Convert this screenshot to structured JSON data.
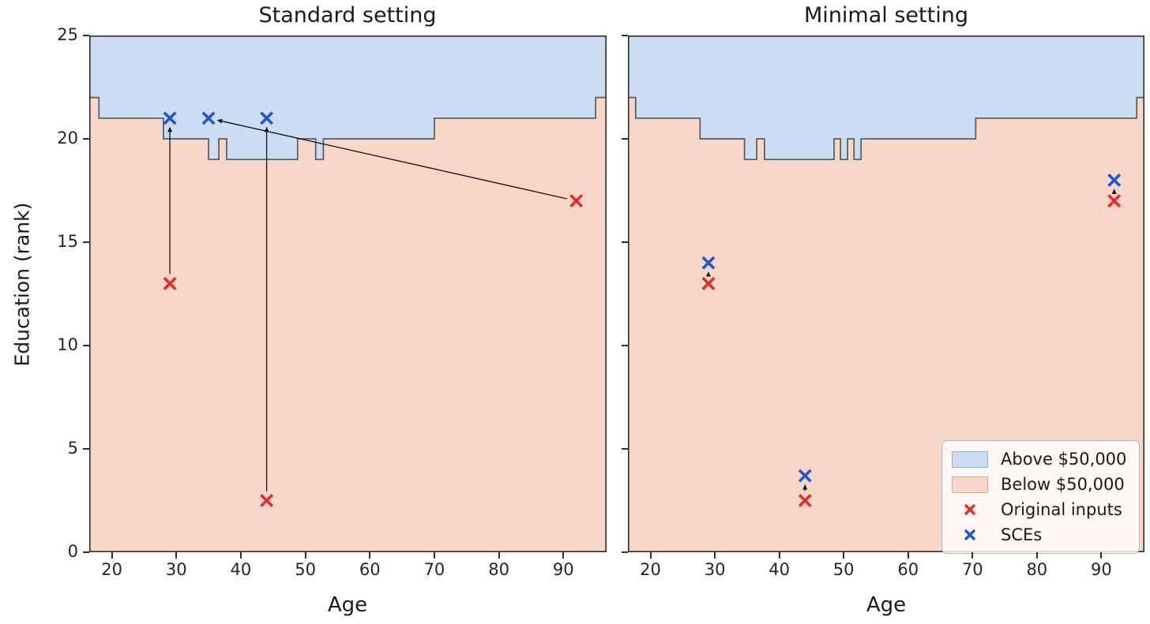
{
  "figure_title": "",
  "colors": {
    "above_region": "#ccdcf3",
    "below_region": "#f9d7c8",
    "boundary_line": "#595959",
    "original_marker": "#e52b2c",
    "sce_marker": "#2456c8",
    "arrow": "#111111",
    "frame": "#2e2e2e",
    "text": "#1a1a1a"
  },
  "x_axis": {
    "label": "Age",
    "ticks": [
      20,
      30,
      40,
      50,
      60,
      70,
      80,
      90
    ],
    "min": 16.5,
    "max": 96.7
  },
  "y_axis": {
    "label": "Education (rank)",
    "ticks": [
      0,
      5,
      10,
      15,
      20,
      25
    ],
    "min": 0,
    "max": 25
  },
  "legend": {
    "items": [
      {
        "swatch": "patch-above",
        "label": "Above $50,000"
      },
      {
        "swatch": "patch-below",
        "label": "Below $50,000"
      },
      {
        "swatch": "x-original",
        "label": "Original inputs"
      },
      {
        "swatch": "x-sce",
        "label": "SCEs"
      }
    ]
  },
  "chart_data": [
    {
      "type": "scatter",
      "subtype": "decision-boundary",
      "title": "Standard setting",
      "xlabel": "Age",
      "ylabel": "Education (rank)",
      "xlim": [
        16.5,
        96.7
      ],
      "ylim": [
        0,
        25
      ],
      "boundary_steps": [
        {
          "from": 16.5,
          "to": 18.0,
          "level": 22
        },
        {
          "from": 18.0,
          "to": 28.0,
          "level": 21
        },
        {
          "from": 28.0,
          "to": 35.0,
          "level": 20
        },
        {
          "from": 35.0,
          "to": 36.6,
          "level": 19
        },
        {
          "from": 36.6,
          "to": 37.8,
          "level": 20
        },
        {
          "from": 37.8,
          "to": 48.8,
          "level": 19
        },
        {
          "from": 48.8,
          "to": 51.6,
          "level": 20
        },
        {
          "from": 51.6,
          "to": 52.8,
          "level": 19
        },
        {
          "from": 52.8,
          "to": 70.0,
          "level": 20
        },
        {
          "from": 70.0,
          "to": 95.0,
          "level": 21
        },
        {
          "from": 95.0,
          "to": 96.7,
          "level": 22
        }
      ],
      "series": [
        {
          "name": "Original inputs",
          "points": [
            [
              29,
              13
            ],
            [
              44,
              2.5
            ],
            [
              92,
              17
            ]
          ]
        },
        {
          "name": "SCEs",
          "points": [
            [
              29,
              21
            ],
            [
              35,
              21
            ],
            [
              44,
              21
            ]
          ]
        }
      ],
      "arrows": [
        {
          "from": [
            29,
            13
          ],
          "to": [
            29,
            21
          ]
        },
        {
          "from": [
            44,
            2.5
          ],
          "to": [
            44,
            21
          ]
        },
        {
          "from": [
            92,
            17
          ],
          "to": [
            35,
            21
          ]
        }
      ]
    },
    {
      "type": "scatter",
      "subtype": "decision-boundary",
      "title": "Minimal setting",
      "xlabel": "Age",
      "ylabel": "",
      "xlim": [
        16.5,
        96.7
      ],
      "ylim": [
        0,
        25
      ],
      "boundary_steps": [
        {
          "from": 16.5,
          "to": 17.7,
          "level": 22
        },
        {
          "from": 17.7,
          "to": 27.7,
          "level": 21
        },
        {
          "from": 27.7,
          "to": 34.6,
          "level": 20
        },
        {
          "from": 34.6,
          "to": 36.5,
          "level": 19
        },
        {
          "from": 36.5,
          "to": 37.7,
          "level": 20
        },
        {
          "from": 37.7,
          "to": 48.5,
          "level": 19
        },
        {
          "from": 48.5,
          "to": 49.5,
          "level": 20
        },
        {
          "from": 49.5,
          "to": 50.6,
          "level": 19
        },
        {
          "from": 50.6,
          "to": 51.6,
          "level": 20
        },
        {
          "from": 51.6,
          "to": 52.7,
          "level": 19
        },
        {
          "from": 52.7,
          "to": 70.5,
          "level": 20
        },
        {
          "from": 70.5,
          "to": 95.5,
          "level": 21
        },
        {
          "from": 95.5,
          "to": 96.7,
          "level": 22
        }
      ],
      "series": [
        {
          "name": "Original inputs",
          "points": [
            [
              29,
              13
            ],
            [
              44,
              2.5
            ],
            [
              92,
              17
            ]
          ]
        },
        {
          "name": "SCEs",
          "points": [
            [
              29,
              14
            ],
            [
              44,
              3.7
            ],
            [
              92,
              18
            ]
          ]
        }
      ],
      "arrows": [
        {
          "from": [
            29,
            13
          ],
          "to": [
            29,
            14
          ]
        },
        {
          "from": [
            44,
            2.5
          ],
          "to": [
            44,
            3.7
          ]
        },
        {
          "from": [
            92,
            17
          ],
          "to": [
            92,
            18
          ]
        }
      ]
    }
  ]
}
